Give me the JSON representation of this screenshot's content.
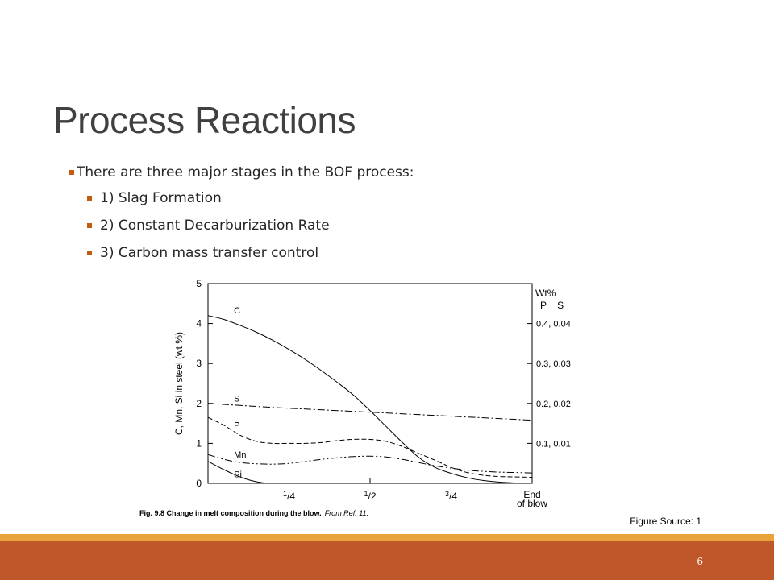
{
  "slide": {
    "title": "Process Reactions",
    "bullets": [
      "There are three major stages in the BOF process:",
      "1) Slag Formation",
      "2) Constant Decarburization Rate",
      "3) Carbon mass transfer control"
    ],
    "figure_source": "Figure Source: 1",
    "page_number": "6"
  },
  "colors": {
    "accent": "#c0572a",
    "accent_light": "#e8a33a",
    "title": "#404040"
  },
  "chart_data": {
    "type": "line",
    "caption": "Fig. 9.8  Change in melt composition during the blow.",
    "caption_ref": "From Ref. 11.",
    "ylabel": "C, Mn, Si in steel (wt %)",
    "ylim": [
      0,
      5
    ],
    "y_ticks": [
      "0",
      "1",
      "2",
      "3",
      "4",
      "5"
    ],
    "xlim": [
      0,
      1
    ],
    "x_ticks": [
      {
        "value": 0.25,
        "label": "1/4"
      },
      {
        "value": 0.5,
        "label": "1/2"
      },
      {
        "value": 0.75,
        "label": "3/4"
      },
      {
        "value": 1.0,
        "label": "End of blow"
      }
    ],
    "right_axis": {
      "title": "Wt%",
      "columns": "P    S",
      "ticks": [
        {
          "value": 4,
          "label": "0.4, 0.04"
        },
        {
          "value": 3,
          "label": "0.3, 0.03"
        },
        {
          "value": 2,
          "label": "0.2, 0.02"
        },
        {
          "value": 1,
          "label": "0.1, 0.01"
        }
      ]
    },
    "series": [
      {
        "name": "C",
        "dash": "solid",
        "label_at": [
          0.08,
          4.25
        ],
        "x": [
          0,
          0.05,
          0.1,
          0.15,
          0.2,
          0.25,
          0.3,
          0.35,
          0.4,
          0.45,
          0.5,
          0.55,
          0.6,
          0.65,
          0.7,
          0.75,
          0.8,
          0.85,
          0.9,
          0.95,
          1.0
        ],
        "y": [
          4.2,
          4.1,
          3.95,
          3.78,
          3.58,
          3.35,
          3.1,
          2.82,
          2.52,
          2.2,
          1.82,
          1.42,
          1.02,
          0.65,
          0.4,
          0.25,
          0.14,
          0.07,
          0.03,
          0.01,
          0.01
        ]
      },
      {
        "name": "S",
        "dash": "dashdot",
        "label_at": [
          0.08,
          2.05
        ],
        "x": [
          0,
          0.1,
          0.2,
          0.3,
          0.4,
          0.5,
          0.6,
          0.7,
          0.8,
          0.9,
          1.0
        ],
        "y": [
          2.0,
          1.95,
          1.9,
          1.86,
          1.82,
          1.78,
          1.74,
          1.7,
          1.66,
          1.62,
          1.58
        ]
      },
      {
        "name": "P",
        "dash": "dashed",
        "label_at": [
          0.08,
          1.38
        ],
        "x": [
          0,
          0.05,
          0.1,
          0.15,
          0.2,
          0.25,
          0.3,
          0.35,
          0.4,
          0.45,
          0.5,
          0.55,
          0.6,
          0.65,
          0.7,
          0.75,
          0.8,
          0.85,
          0.9,
          0.95,
          1.0
        ],
        "y": [
          1.65,
          1.45,
          1.2,
          1.05,
          1.0,
          1.0,
          1.0,
          1.02,
          1.07,
          1.1,
          1.1,
          1.05,
          0.92,
          0.75,
          0.58,
          0.4,
          0.27,
          0.2,
          0.17,
          0.16,
          0.15
        ]
      },
      {
        "name": "Mn",
        "dash": "dashdotdot",
        "label_at": [
          0.08,
          0.65
        ],
        "x": [
          0,
          0.05,
          0.1,
          0.15,
          0.2,
          0.25,
          0.3,
          0.35,
          0.4,
          0.45,
          0.5,
          0.55,
          0.6,
          0.65,
          0.7,
          0.75,
          0.8,
          0.85,
          0.9,
          0.95,
          1.0
        ],
        "y": [
          0.72,
          0.6,
          0.52,
          0.49,
          0.48,
          0.5,
          0.55,
          0.6,
          0.64,
          0.67,
          0.68,
          0.66,
          0.6,
          0.52,
          0.44,
          0.38,
          0.33,
          0.3,
          0.28,
          0.27,
          0.26
        ]
      },
      {
        "name": "Si",
        "dash": "solid",
        "label_at": [
          0.08,
          0.15
        ],
        "x": [
          0,
          0.03,
          0.06,
          0.09,
          0.12,
          0.15,
          0.18
        ],
        "y": [
          0.55,
          0.42,
          0.3,
          0.19,
          0.1,
          0.04,
          0.0
        ]
      }
    ]
  }
}
